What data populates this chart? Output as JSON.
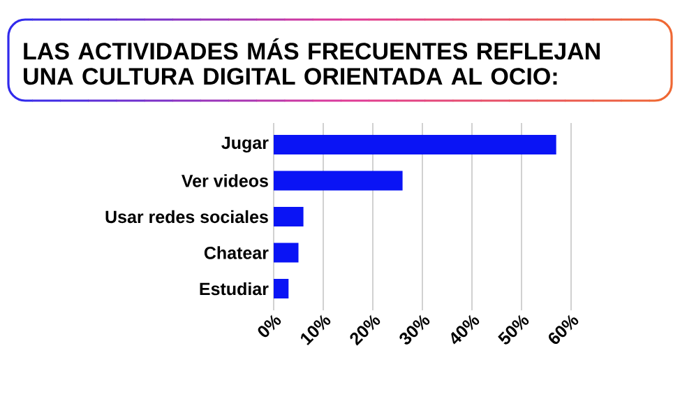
{
  "chart_data": {
    "type": "bar",
    "orientation": "horizontal",
    "title": "LAS ACTIVIDADES MÁS FRECUENTES REFLEJAN UNA CULTURA DIGITAL ORIENTADA AL OCIO:",
    "categories": [
      "Jugar",
      "Ver videos",
      "Usar redes sociales",
      "Chatear",
      "Estudiar"
    ],
    "values": [
      57,
      26,
      6,
      5,
      3
    ],
    "color": "#0a14f5",
    "xlim": [
      0,
      60
    ],
    "xticks": [
      {
        "value": 0,
        "label": "0%"
      },
      {
        "value": 10,
        "label": "10%"
      },
      {
        "value": 20,
        "label": "20%"
      },
      {
        "value": 30,
        "label": "30%"
      },
      {
        "value": 40,
        "label": "40%"
      },
      {
        "value": 50,
        "label": "50%"
      },
      {
        "value": 60,
        "label": "60%"
      }
    ],
    "grid": "x"
  }
}
